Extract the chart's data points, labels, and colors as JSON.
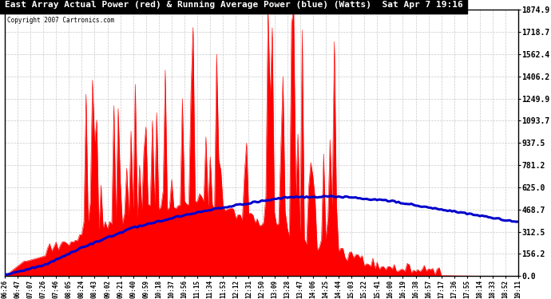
{
  "title": "East Array Actual Power (red) & Running Average Power (blue) (Watts)  Sat Apr 7 19:16",
  "copyright": "Copyright 2007 Cartronics.com",
  "ylabel_values": [
    0.0,
    156.2,
    312.5,
    468.7,
    625.0,
    781.2,
    937.5,
    1093.7,
    1249.9,
    1406.2,
    1562.4,
    1718.7,
    1874.9
  ],
  "ymax": 1874.9,
  "ymin": 0.0,
  "background_color": "#ffffff",
  "grid_color": "#bbbbbb",
  "fill_color": "#ff0000",
  "avg_line_color": "#0000cc",
  "title_bg": "#000000",
  "title_text_color": "#ffffff",
  "time_labels": [
    "06:26",
    "06:47",
    "07:07",
    "07:26",
    "07:46",
    "08:05",
    "08:24",
    "08:43",
    "09:02",
    "09:21",
    "09:40",
    "09:59",
    "10:18",
    "10:37",
    "10:56",
    "11:15",
    "11:34",
    "11:53",
    "12:12",
    "12:31",
    "12:50",
    "13:09",
    "13:28",
    "13:47",
    "14:06",
    "14:25",
    "14:44",
    "15:03",
    "15:22",
    "15:41",
    "16:00",
    "16:19",
    "16:38",
    "16:57",
    "17:17",
    "17:36",
    "17:55",
    "18:14",
    "18:33",
    "18:52",
    "19:11"
  ]
}
